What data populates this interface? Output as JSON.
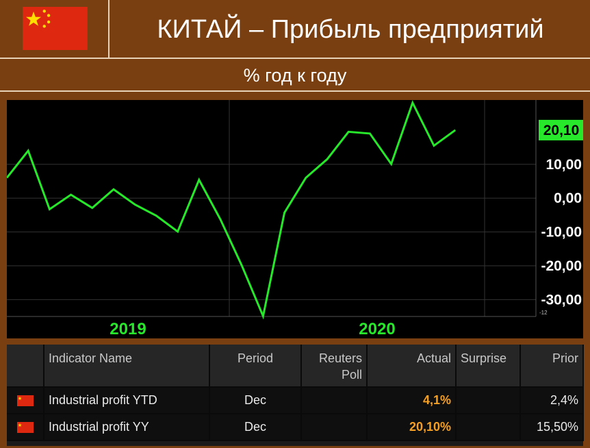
{
  "header": {
    "title": "КИТАЙ – Прибыль предприятий",
    "subtitle": "% год к году"
  },
  "colors": {
    "background": "#7a3f10",
    "line": "#27e82a",
    "last_value_tag": "#27e82a",
    "highlight_value": "#f6a023",
    "flag_red": "#de2910",
    "flag_star": "#ffde00"
  },
  "chart_data": {
    "type": "line",
    "title": "",
    "xlabel": "",
    "ylabel": "",
    "ylim": [
      -35,
      29
    ],
    "y_ticks": [
      "20,10",
      "10,00",
      "0,00",
      "-10,00",
      "-20,00",
      "-30,00"
    ],
    "y_tick_values": [
      20.1,
      10,
      0,
      -10,
      -20,
      -30
    ],
    "x_labels": [
      "2019",
      "2020"
    ],
    "last_value_label": "20,10",
    "corner_label": "-12",
    "series": [
      {
        "name": "",
        "values": [
          6.0,
          14.0,
          -3.3,
          1.0,
          -2.9,
          2.6,
          -1.9,
          -5.2,
          -9.9,
          5.4,
          -6.3,
          -19.9,
          -34.9,
          -4.3,
          6.0,
          11.5,
          19.6,
          19.1,
          10.1,
          28.2,
          15.5,
          20.1
        ]
      }
    ]
  },
  "table": {
    "headers": [
      "",
      "Indicator Name",
      "Period",
      "Reuters\nPoll",
      "Actual",
      "Surprise",
      "Prior"
    ],
    "rows": [
      {
        "indicator": "Industrial profit YTD",
        "period": "Dec",
        "poll": "",
        "actual": "4,1%",
        "surprise": "",
        "prior": "2,4%"
      },
      {
        "indicator": "Industrial profit YY",
        "period": "Dec",
        "poll": "",
        "actual": "20,10%",
        "surprise": "",
        "prior": "15,50%"
      }
    ]
  }
}
